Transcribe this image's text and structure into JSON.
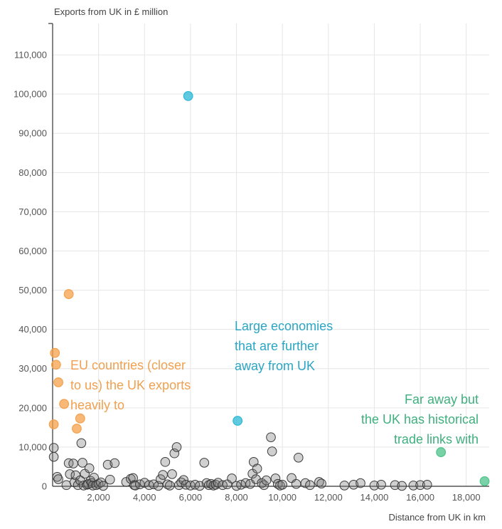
{
  "chart_data": {
    "type": "scatter",
    "xlabel": "Distance from UK in km",
    "ylabel": "Exports from UK in £ million",
    "xlim": [
      0,
      19000
    ],
    "ylim": [
      0,
      118000
    ],
    "x_ticks": [
      2000,
      4000,
      6000,
      8000,
      10000,
      12000,
      14000,
      16000,
      18000
    ],
    "x_tick_labels": [
      "2,000",
      "4,000",
      "6,000",
      "8,000",
      "10,000",
      "12,000",
      "14,000",
      "16,000",
      "18,000"
    ],
    "y_ticks": [
      0,
      10000,
      20000,
      30000,
      40000,
      50000,
      60000,
      70000,
      80000,
      90000,
      100000,
      110000
    ],
    "y_tick_labels": [
      "0",
      "10,000",
      "20,000",
      "30,000",
      "40,000",
      "50,000",
      "60,000",
      "70,000",
      "80,000",
      "90,000",
      "100,000",
      "110,000"
    ],
    "grid": true,
    "colors": {
      "eu": "#f5a04a",
      "large": "#2bb8d6",
      "historical": "#4cc38a",
      "other": "#999999",
      "eu_text": "#f0a050",
      "large_text": "#2aa6c4",
      "historical_text": "#3fb07d"
    },
    "series": [
      {
        "key": "eu",
        "values": [
          [
            700,
            49000
          ],
          [
            100,
            34000
          ],
          [
            150,
            31000
          ],
          [
            250,
            26500
          ],
          [
            500,
            21000
          ],
          [
            1200,
            17300
          ],
          [
            1050,
            14700
          ],
          [
            50,
            15800
          ]
        ]
      },
      {
        "key": "large",
        "values": [
          [
            5900,
            99500
          ],
          [
            8050,
            16700
          ]
        ]
      },
      {
        "key": "historical",
        "values": [
          [
            16900,
            8700
          ],
          [
            18800,
            1300
          ]
        ]
      },
      {
        "key": "other",
        "values": [
          [
            50,
            9800
          ],
          [
            50,
            7500
          ],
          [
            200,
            2400
          ],
          [
            250,
            1800
          ],
          [
            600,
            300
          ],
          [
            700,
            5900
          ],
          [
            750,
            3100
          ],
          [
            900,
            5800
          ],
          [
            950,
            1000
          ],
          [
            1000,
            2800
          ],
          [
            1100,
            300
          ],
          [
            1200,
            1500
          ],
          [
            1250,
            11000
          ],
          [
            1300,
            6000
          ],
          [
            1350,
            200
          ],
          [
            1400,
            3200
          ],
          [
            1500,
            400
          ],
          [
            1550,
            600
          ],
          [
            1600,
            4600
          ],
          [
            1650,
            1400
          ],
          [
            1700,
            800
          ],
          [
            1750,
            200
          ],
          [
            1800,
            2200
          ],
          [
            1900,
            300
          ],
          [
            2000,
            600
          ],
          [
            2100,
            1000
          ],
          [
            2200,
            100
          ],
          [
            2400,
            5500
          ],
          [
            2500,
            1700
          ],
          [
            2700,
            5900
          ],
          [
            3200,
            1100
          ],
          [
            3400,
            1900
          ],
          [
            3500,
            2100
          ],
          [
            3550,
            300
          ],
          [
            3600,
            200
          ],
          [
            3800,
            500
          ],
          [
            4000,
            900
          ],
          [
            4200,
            300
          ],
          [
            4400,
            500
          ],
          [
            4600,
            100
          ],
          [
            4700,
            1800
          ],
          [
            4800,
            2900
          ],
          [
            4900,
            6200
          ],
          [
            5000,
            500
          ],
          [
            5100,
            200
          ],
          [
            5200,
            3100
          ],
          [
            5300,
            8400
          ],
          [
            5400,
            10000
          ],
          [
            5500,
            300
          ],
          [
            5600,
            1000
          ],
          [
            5700,
            1600
          ],
          [
            5800,
            400
          ],
          [
            6000,
            200
          ],
          [
            6200,
            400
          ],
          [
            6400,
            100
          ],
          [
            6600,
            6000
          ],
          [
            6700,
            800
          ],
          [
            6800,
            300
          ],
          [
            6900,
            600
          ],
          [
            7000,
            200
          ],
          [
            7100,
            400
          ],
          [
            7200,
            900
          ],
          [
            7400,
            300
          ],
          [
            7600,
            500
          ],
          [
            7800,
            2000
          ],
          [
            8000,
            100
          ],
          [
            8200,
            400
          ],
          [
            8400,
            800
          ],
          [
            8600,
            600
          ],
          [
            8700,
            3200
          ],
          [
            8750,
            6200
          ],
          [
            8850,
            1800
          ],
          [
            8900,
            4500
          ],
          [
            9100,
            800
          ],
          [
            9200,
            300
          ],
          [
            9300,
            1500
          ],
          [
            9500,
            12500
          ],
          [
            9550,
            8900
          ],
          [
            9700,
            2000
          ],
          [
            9800,
            600
          ],
          [
            9900,
            200
          ],
          [
            10000,
            400
          ],
          [
            10400,
            2100
          ],
          [
            10600,
            600
          ],
          [
            10700,
            7300
          ],
          [
            11000,
            800
          ],
          [
            11200,
            300
          ],
          [
            11600,
            1100
          ],
          [
            11700,
            700
          ],
          [
            12700,
            200
          ],
          [
            13100,
            400
          ],
          [
            13400,
            800
          ],
          [
            14000,
            200
          ],
          [
            14300,
            400
          ],
          [
            14900,
            300
          ],
          [
            15200,
            100
          ],
          [
            15700,
            200
          ],
          [
            16000,
            300
          ],
          [
            16300,
            400
          ]
        ]
      }
    ],
    "annotations": [
      {
        "key": "eu",
        "lines": [
          "EU countries (closer",
          "to us) the UK exports",
          "heavily to"
        ]
      },
      {
        "key": "large",
        "lines": [
          "Large economies",
          "that are further",
          "away from UK"
        ]
      },
      {
        "key": "historical",
        "lines": [
          "Far away but",
          "the UK has historical",
          "trade links with"
        ]
      }
    ]
  }
}
